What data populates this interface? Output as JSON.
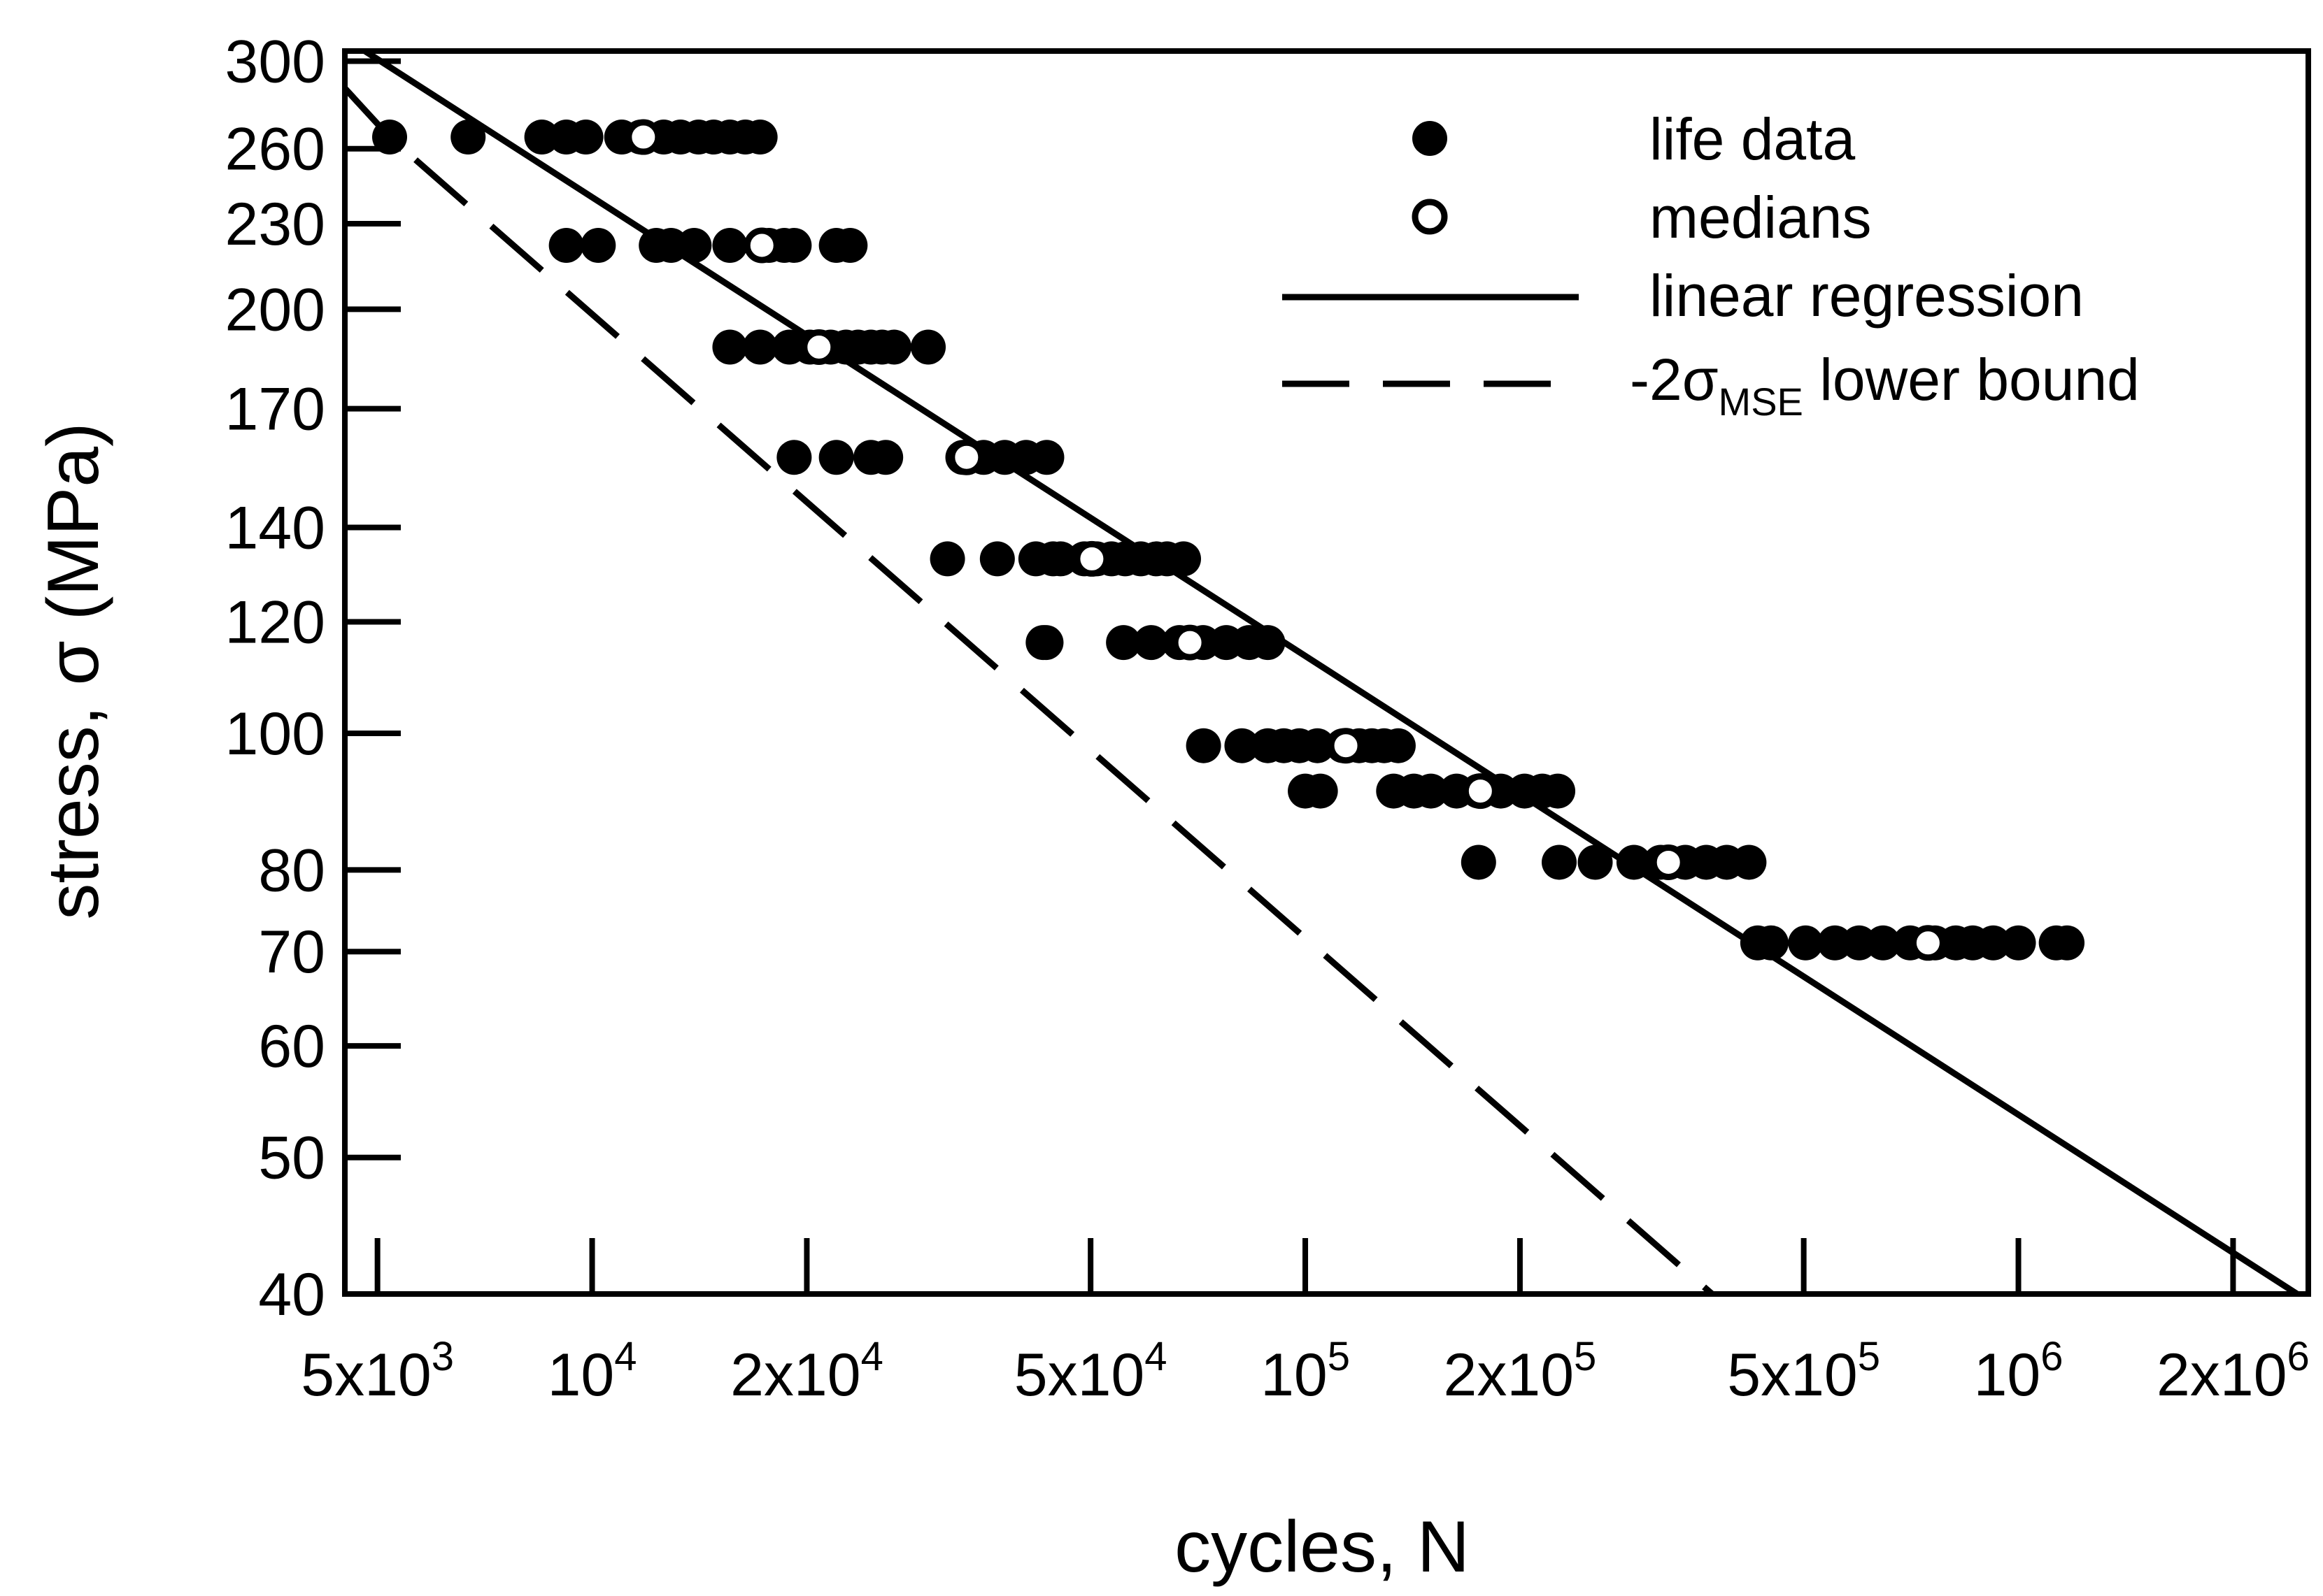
{
  "chart_data": {
    "type": "scatter",
    "xlabel": "cycles, N",
    "ylabel_parts": [
      "stress, ",
      "σ",
      " (MPa)"
    ],
    "x_scale": "log",
    "y_scale": "log",
    "xlim": [
      4500,
      2550000
    ],
    "ylim": [
      40,
      305
    ],
    "xticks": [
      {
        "value": 5000,
        "mant": "5x10",
        "exp": "3"
      },
      {
        "value": 10000,
        "mant": "10",
        "exp": "4"
      },
      {
        "value": 20000,
        "mant": "2x10",
        "exp": "4"
      },
      {
        "value": 50000,
        "mant": "5x10",
        "exp": "4"
      },
      {
        "value": 100000,
        "mant": "10",
        "exp": "5"
      },
      {
        "value": 200000,
        "mant": "2x10",
        "exp": "5"
      },
      {
        "value": 500000,
        "mant": "5x10",
        "exp": "5"
      },
      {
        "value": 1000000,
        "mant": "10",
        "exp": "6"
      },
      {
        "value": 2000000,
        "mant": "2x10",
        "exp": "6"
      }
    ],
    "yticks": [
      {
        "value": 40,
        "label": "40"
      },
      {
        "value": 50,
        "label": "50"
      },
      {
        "value": 60,
        "label": "60"
      },
      {
        "value": 70,
        "label": "70"
      },
      {
        "value": 80,
        "label": "80"
      },
      {
        "value": 100,
        "label": "100"
      },
      {
        "value": 120,
        "label": "120"
      },
      {
        "value": 140,
        "label": "140"
      },
      {
        "value": 170,
        "label": "170"
      },
      {
        "value": 200,
        "label": "200"
      },
      {
        "value": 230,
        "label": "230"
      },
      {
        "value": 260,
        "label": "260"
      },
      {
        "value": 300,
        "label": "300"
      }
    ],
    "legend": {
      "placement": "top-right",
      "life_data": "life data",
      "medians": "medians",
      "regression": "linear regression",
      "lower_bound_prefix": "-2σ",
      "lower_bound_sub": "MSE",
      "lower_bound_suffix": " lower bound"
    },
    "series": {
      "life_data": [
        {
          "stress": 265,
          "cycles": [
            5200,
            6700,
            8500,
            9200,
            9800,
            11000,
            11700,
            12600,
            13300,
            14100,
            14800,
            15600,
            16400,
            17200
          ]
        },
        {
          "stress": 222,
          "cycles": [
            9200,
            10200,
            12300,
            12900,
            13900,
            15600,
            17700,
            18600,
            19200,
            22000,
            23000
          ]
        },
        {
          "stress": 188,
          "cycles": [
            15600,
            17200,
            18900,
            20200,
            21600,
            22700,
            23600,
            24600,
            25500,
            26500,
            29600
          ]
        },
        {
          "stress": 157,
          "cycles": [
            19200,
            22000,
            24600,
            25800,
            33100,
            35400,
            37900,
            40600,
            43400
          ]
        },
        {
          "stress": 133,
          "cycles": [
            31500,
            37000,
            41900,
            44300,
            45400,
            49000,
            51000,
            53500,
            55900,
            58800,
            61800,
            64000,
            67500
          ]
        },
        {
          "stress": 116,
          "cycles": [
            42900,
            43300,
            55600,
            60800,
            66600,
            71900,
            77500,
            83400,
            88600
          ]
        },
        {
          "stress": 98,
          "cycles": [
            72000,
            81500,
            88600,
            93300,
            98100,
            104000,
            113000,
            119000,
            124000,
            129000,
            135000
          ]
        },
        {
          "stress": 91,
          "cycles": [
            100000,
            105000,
            133000,
            142000,
            150000,
            163000,
            175000,
            188000,
            203000,
            215000,
            226000
          ]
        },
        {
          "stress": 81,
          "cycles": [
            175000,
            227000,
            255000,
            289000,
            315000,
            341000,
            365000,
            390000,
            419000
          ]
        },
        {
          "stress": 71,
          "cycles": [
            431000,
            450000,
            503000,
            553000,
            598000,
            646000,
            705000,
            764000,
            817000,
            863000,
            922000,
            1000000,
            1130000,
            1170000
          ]
        }
      ],
      "medians": [
        {
          "stress": 265,
          "cycles": 11800
        },
        {
          "stress": 222,
          "cycles": 17300
        },
        {
          "stress": 188,
          "cycles": 20800
        },
        {
          "stress": 157,
          "cycles": 33500
        },
        {
          "stress": 133,
          "cycles": 50200
        },
        {
          "stress": 116,
          "cycles": 68900
        },
        {
          "stress": 98,
          "cycles": 114000
        },
        {
          "stress": 91,
          "cycles": 176000
        },
        {
          "stress": 81,
          "cycles": 323000
        },
        {
          "stress": 71,
          "cycles": 747000
        }
      ],
      "regression_line": [
        {
          "cycles": 4800,
          "stress": 305
        },
        {
          "cycles": 2460000,
          "stress": 40
        }
      ],
      "lower_bound_line": [
        {
          "cycles": 4500,
          "stress": 287
        },
        {
          "cycles": 5200,
          "stress": 265
        },
        {
          "cycles": 372000,
          "stress": 40
        }
      ]
    }
  }
}
